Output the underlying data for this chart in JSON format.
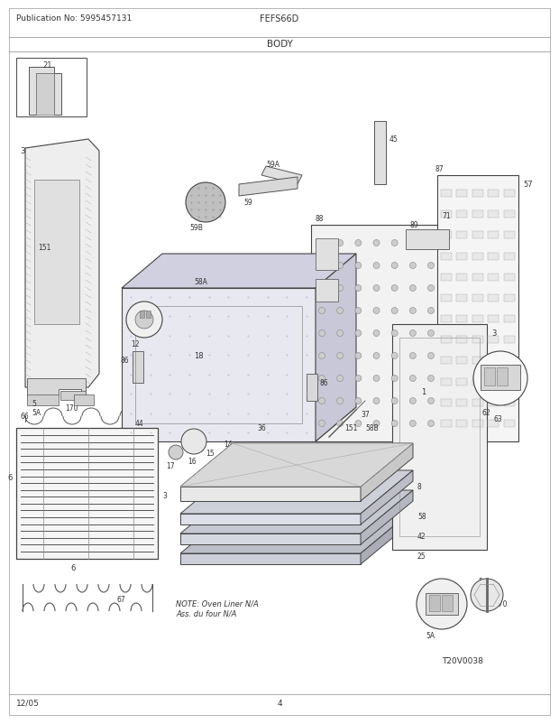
{
  "title": "BODY",
  "header_left": "Publication No: 5995457131",
  "header_center": "FEFS66D",
  "footer_left": "12/05",
  "footer_center": "4",
  "note_text": "NOTE: Oven Liner N/A\nAss. du four N/A",
  "t20": "T20V0038",
  "bg_color": "#ffffff",
  "fig_width": 6.2,
  "fig_height": 8.03,
  "dpi": 100
}
